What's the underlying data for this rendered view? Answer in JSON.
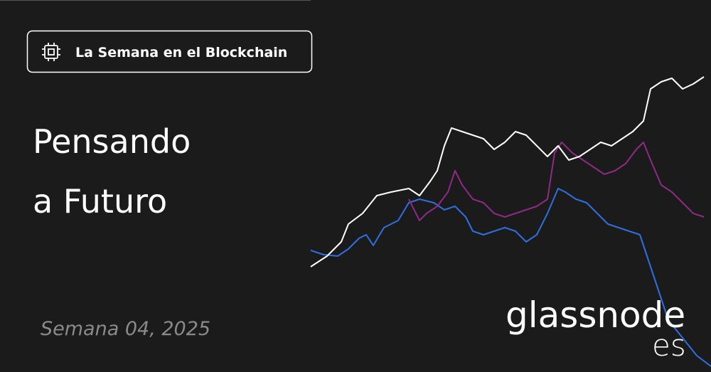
{
  "badge": {
    "label": "La Semana en el Blockchain"
  },
  "title": {
    "lines": [
      "Pensando",
      "a Futuro"
    ]
  },
  "subtitle": "Semana 04, 2025",
  "logo": {
    "name": "glassnode",
    "suffix": "es"
  }
}
